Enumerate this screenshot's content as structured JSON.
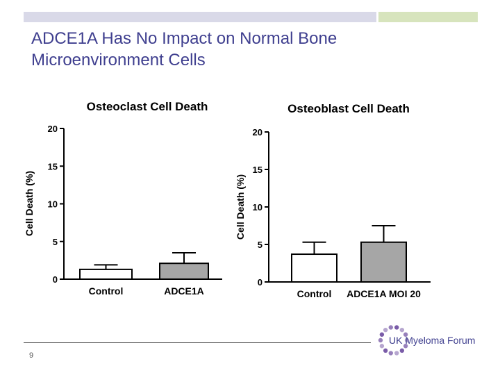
{
  "slide": {
    "title_line1": "ADCE1A Has No Impact on Normal Bone",
    "title_line2": "Microenvironment Cells",
    "page_number": "9",
    "logo_text": "UK Myeloma Forum"
  },
  "colors": {
    "title": "#3f3f8f",
    "bar_control": "#ffffff",
    "bar_treatment": "#a6a6a6",
    "axis": "#000000",
    "topbar_left": "#d9d9e8",
    "topbar_right": "#d7e4bd",
    "logo_dots": "#7a5ca8"
  },
  "chart_data": [
    {
      "type": "bar",
      "title": "Osteoclast Cell Death",
      "ylabel": "Cell Death (%)",
      "xlabel": "",
      "ylim": [
        0,
        20
      ],
      "yticks": [
        0,
        5,
        10,
        15,
        20
      ],
      "categories": [
        "Control",
        "ADCE1A"
      ],
      "values": [
        1.3,
        2.1
      ],
      "errors": [
        0.6,
        1.4
      ],
      "bar_colors": [
        "#ffffff",
        "#a6a6a6"
      ]
    },
    {
      "type": "bar",
      "title": "Osteoblast Cell Death",
      "ylabel": "Cell Death (%)",
      "xlabel": "",
      "ylim": [
        0,
        20
      ],
      "yticks": [
        0,
        5,
        10,
        15,
        20
      ],
      "categories": [
        "Control",
        "ADCE1A MOI 20"
      ],
      "values": [
        3.7,
        5.3
      ],
      "errors": [
        1.6,
        2.2
      ],
      "bar_colors": [
        "#ffffff",
        "#a6a6a6"
      ]
    }
  ]
}
